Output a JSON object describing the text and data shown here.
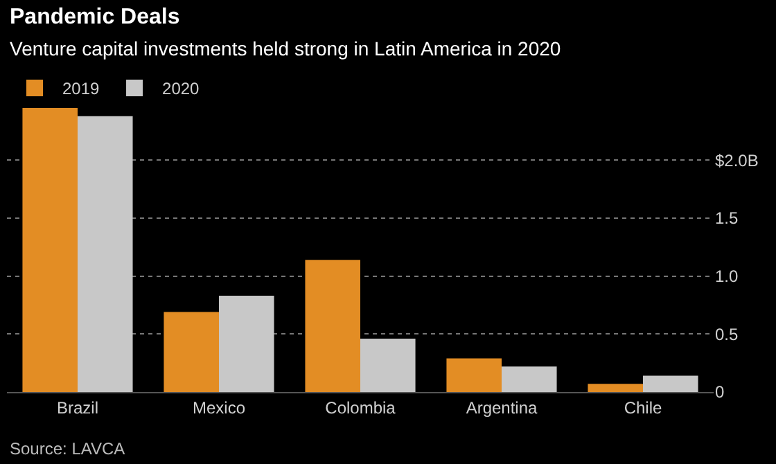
{
  "chart_data": {
    "type": "bar",
    "title": "Pandemic Deals",
    "subtitle": "Venture capital investments held strong in Latin America in 2020",
    "categories": [
      "Brazil",
      "Mexico",
      "Colombia",
      "Argentina",
      "Chile"
    ],
    "series": [
      {
        "name": "2019",
        "color": "#e38d24",
        "values": [
          2.45,
          0.69,
          1.14,
          0.29,
          0.07
        ]
      },
      {
        "name": "2020",
        "color": "#c8c8c8",
        "values": [
          2.38,
          0.83,
          0.46,
          0.22,
          0.14
        ]
      }
    ],
    "ylim": [
      0,
      2.45
    ],
    "yticks": [
      0,
      0.5,
      {
        "value": 1.0,
        "label": "1.0"
      },
      1.5,
      {
        "value": 2.0,
        "label": "$2.0B"
      }
    ],
    "grid": "y",
    "legend": "top left",
    "annotations": [
      "Source: LAVCA"
    ]
  }
}
